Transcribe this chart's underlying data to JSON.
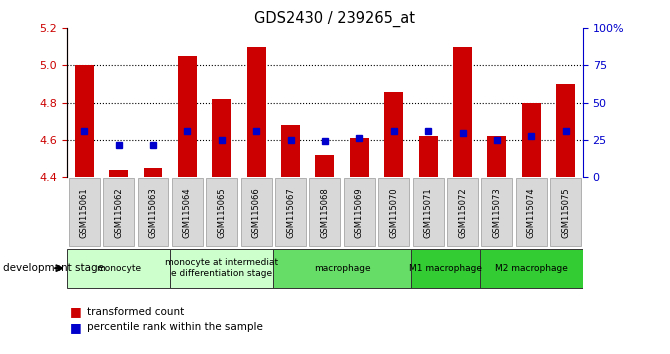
{
  "title": "GDS2430 / 239265_at",
  "samples": [
    "GSM115061",
    "GSM115062",
    "GSM115063",
    "GSM115064",
    "GSM115065",
    "GSM115066",
    "GSM115067",
    "GSM115068",
    "GSM115069",
    "GSM115070",
    "GSM115071",
    "GSM115072",
    "GSM115073",
    "GSM115074",
    "GSM115075"
  ],
  "bar_values": [
    5.0,
    4.44,
    4.45,
    5.05,
    4.82,
    5.1,
    4.68,
    4.52,
    4.61,
    4.86,
    4.62,
    5.1,
    4.62,
    4.8,
    4.9
  ],
  "blue_values": [
    4.65,
    4.57,
    4.57,
    4.65,
    4.6,
    4.65,
    4.6,
    4.595,
    4.61,
    4.645,
    4.645,
    4.635,
    4.6,
    4.62,
    4.645
  ],
  "bar_bottom": 4.4,
  "ylim_left": [
    4.4,
    5.2
  ],
  "ylim_right": [
    0,
    100
  ],
  "yticks_left": [
    4.4,
    4.6,
    4.8,
    5.0,
    5.2
  ],
  "yticks_right": [
    0,
    25,
    50,
    75,
    100
  ],
  "ytick_labels_right": [
    "0",
    "25",
    "50",
    "75",
    "100%"
  ],
  "bar_color": "#CC0000",
  "blue_color": "#0000CC",
  "grid_values": [
    4.6,
    4.8,
    5.0
  ],
  "stage_groups": [
    {
      "label": "monocyte",
      "start": 0,
      "end": 2,
      "color": "#ccffcc"
    },
    {
      "label": "monocyte at intermediat\ne differentiation stage",
      "start": 3,
      "end": 5,
      "color": "#ccffcc"
    },
    {
      "label": "macrophage",
      "start": 6,
      "end": 9,
      "color": "#66dd66"
    },
    {
      "label": "M1 macrophage",
      "start": 10,
      "end": 11,
      "color": "#33cc33"
    },
    {
      "label": "M2 macrophage",
      "start": 12,
      "end": 14,
      "color": "#33cc33"
    }
  ],
  "legend_red": "transformed count",
  "legend_blue": "percentile rank within the sample",
  "dev_stage_label": "development stage"
}
